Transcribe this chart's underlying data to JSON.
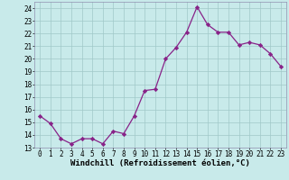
{
  "x": [
    0,
    1,
    2,
    3,
    4,
    5,
    6,
    7,
    8,
    9,
    10,
    11,
    12,
    13,
    14,
    15,
    16,
    17,
    18,
    19,
    20,
    21,
    22,
    23
  ],
  "y": [
    15.5,
    14.9,
    13.7,
    13.3,
    13.7,
    13.7,
    13.3,
    14.3,
    14.1,
    15.5,
    17.5,
    17.6,
    20.0,
    20.9,
    22.1,
    24.1,
    22.7,
    22.1,
    22.1,
    21.1,
    21.3,
    21.1,
    20.4,
    19.4
  ],
  "line_color": "#882288",
  "marker": "D",
  "marker_size": 2.2,
  "bg_color": "#c8eaea",
  "grid_color": "#a0c8c8",
  "xlabel": "Windchill (Refroidissement éolien,°C)",
  "xlabel_fontsize": 6.5,
  "xlim": [
    -0.5,
    23.5
  ],
  "ylim": [
    13,
    24.5
  ],
  "yticks": [
    13,
    14,
    15,
    16,
    17,
    18,
    19,
    20,
    21,
    22,
    23,
    24
  ],
  "xticks": [
    0,
    1,
    2,
    3,
    4,
    5,
    6,
    7,
    8,
    9,
    10,
    11,
    12,
    13,
    14,
    15,
    16,
    17,
    18,
    19,
    20,
    21,
    22,
    23
  ],
  "tick_fontsize": 5.5,
  "fig_bg_color": "#c8eaea",
  "spine_color": "#9090b0",
  "linewidth": 0.9
}
